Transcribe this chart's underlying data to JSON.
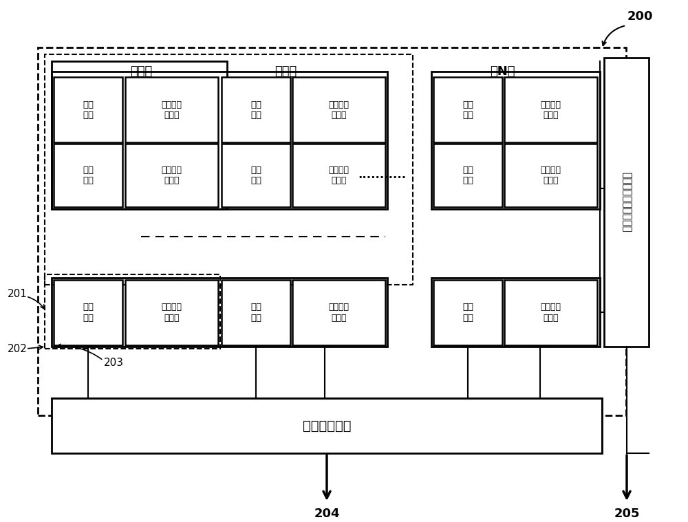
{
  "bg_color": "#ffffff",
  "title": "",
  "fig_label": "200",
  "label_201": "201",
  "label_202": "202",
  "label_203": "203",
  "label_204": "204",
  "label_205": "205",
  "level1_label": "第一级",
  "level2_label": "第二级",
  "levelN_label": "第N级",
  "pixel_text": "像素\n单元",
  "counter_text": "可转移型\n计数器",
  "timing_text": "时序控制电路",
  "memory_text": "锁存器及地址选择电路",
  "dots_text": "...........",
  "dash_text": "- - - - - - - - -"
}
